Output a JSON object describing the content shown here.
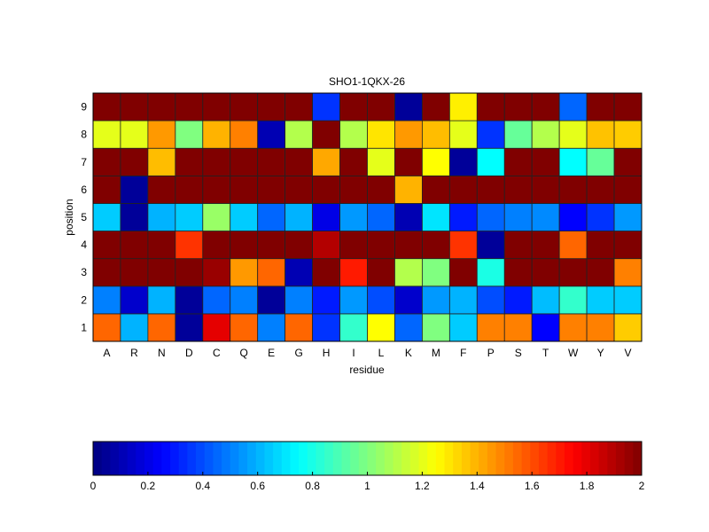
{
  "chart_data": {
    "type": "heatmap",
    "title": "SHO1-1QKX-26",
    "xlabel": "residue",
    "ylabel": "position",
    "colormap": "jet",
    "clim": [
      0,
      2
    ],
    "x_categories": [
      "A",
      "R",
      "N",
      "D",
      "C",
      "Q",
      "E",
      "G",
      "H",
      "I",
      "L",
      "K",
      "M",
      "F",
      "P",
      "S",
      "T",
      "W",
      "Y",
      "V"
    ],
    "y_categories": [
      "1",
      "2",
      "3",
      "4",
      "5",
      "6",
      "7",
      "8",
      "9"
    ],
    "values": [
      [
        1.55,
        0.6,
        1.55,
        0.05,
        1.8,
        1.55,
        0.5,
        1.55,
        0.35,
        0.85,
        1.25,
        0.45,
        1.0,
        0.65,
        1.5,
        1.5,
        0.25,
        1.5,
        1.5,
        1.35
      ],
      [
        0.5,
        0.15,
        0.6,
        0.05,
        0.45,
        0.5,
        0.05,
        0.5,
        0.3,
        0.55,
        0.4,
        0.15,
        0.55,
        0.6,
        0.4,
        0.3,
        0.62,
        0.85,
        0.65,
        0.65
      ],
      [
        2,
        2,
        2,
        2,
        1.95,
        1.45,
        1.55,
        0.1,
        2,
        1.7,
        2,
        1.1,
        1.0,
        2,
        0.8,
        2,
        2,
        2,
        2,
        1.5
      ],
      [
        2,
        2,
        2,
        1.65,
        2,
        2,
        2,
        2,
        1.9,
        2,
        2,
        2,
        2,
        1.65,
        0.05,
        2,
        2,
        1.55,
        2,
        2
      ],
      [
        0.65,
        0.05,
        0.6,
        0.65,
        1.05,
        0.65,
        0.45,
        0.6,
        0.2,
        0.55,
        0.45,
        0.1,
        0.7,
        0.3,
        0.45,
        0.5,
        0.52,
        0.25,
        0.35,
        0.55
      ],
      [
        2,
        0.05,
        2,
        2,
        2,
        2,
        2,
        2,
        2,
        2,
        2,
        1.4,
        2,
        2,
        2,
        2,
        2,
        2,
        2,
        2
      ],
      [
        2,
        2,
        1.38,
        2,
        2,
        2,
        2,
        2,
        1.42,
        2,
        1.2,
        2,
        1.25,
        0.05,
        0.75,
        2,
        2,
        0.75,
        0.95,
        2
      ],
      [
        1.2,
        1.2,
        1.45,
        1.0,
        1.4,
        1.5,
        0.1,
        1.1,
        2,
        1.1,
        1.3,
        1.45,
        1.38,
        1.2,
        0.35,
        0.95,
        1.1,
        1.2,
        1.37,
        1.35
      ],
      [
        2,
        2,
        2,
        2,
        2,
        2,
        2,
        2,
        0.35,
        2,
        2,
        0.05,
        2,
        1.28,
        2,
        2,
        2,
        0.45,
        2,
        2
      ]
    ],
    "colorbar": {
      "ticks": [
        "0",
        "0.2",
        "0.4",
        "0.6",
        "0.8",
        "1",
        "1.2",
        "1.4",
        "1.6",
        "1.8",
        "2"
      ],
      "orientation": "horizontal",
      "placement": "bottom"
    }
  }
}
